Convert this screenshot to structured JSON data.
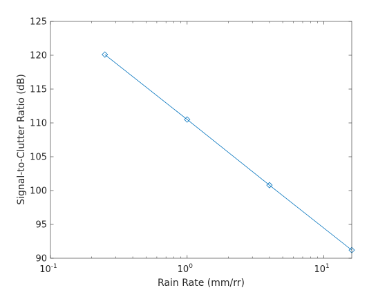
{
  "chart_data": {
    "type": "line",
    "xscale": "log",
    "xlabel": "Rain Rate (mm/rr)",
    "ylabel": "Signal-to-Clutter Ratio (dB)",
    "xlim": [
      0.1,
      16
    ],
    "ylim": [
      90,
      125
    ],
    "grid": false,
    "x_ticks": [
      {
        "value": 0.1,
        "base": "10",
        "exp": "-1"
      },
      {
        "value": 1,
        "base": "10",
        "exp": "0"
      },
      {
        "value": 10,
        "base": "10",
        "exp": "1"
      }
    ],
    "y_ticks": [
      90,
      95,
      100,
      105,
      110,
      115,
      120,
      125
    ],
    "y_tick_labels": [
      "90",
      "95",
      "100",
      "105",
      "110",
      "115",
      "120",
      "125"
    ],
    "series": [
      {
        "x": [
          0.25,
          1,
          4,
          16
        ],
        "y": [
          120.1,
          110.5,
          100.8,
          91.2
        ],
        "marker": "diamond",
        "color": "#0072BD"
      }
    ]
  }
}
